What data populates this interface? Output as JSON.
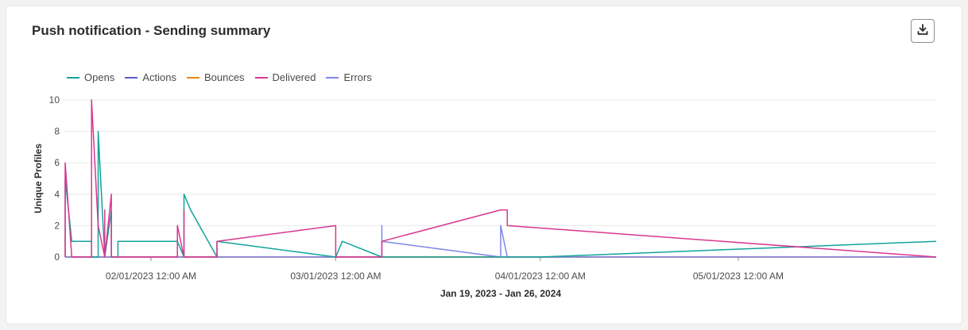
{
  "header": {
    "title": "Push notification - Sending summary",
    "download_icon": "download-icon"
  },
  "chart_data": {
    "type": "line",
    "title": "Push notification - Sending summary",
    "ylabel": "Unique Profiles",
    "xlabel": "Jan 19, 2023 - Jan 26, 2024",
    "ylim": [
      0,
      10
    ],
    "yticks": [
      0,
      2,
      4,
      6,
      8,
      10
    ],
    "x_tick_labels": [
      "02/01/2023 12:00 AM",
      "03/01/2023 12:00 AM",
      "04/01/2023 12:00 AM",
      "05/01/2023 12:00 AM"
    ],
    "x_range": [
      "2023-01-19",
      "2023-05-31"
    ],
    "grid": true,
    "legend_position": "top-left",
    "series": [
      {
        "name": "Opens",
        "color": "#12a39a",
        "points": [
          [
            "2023-01-19",
            0
          ],
          [
            "2023-01-19",
            5
          ],
          [
            "2023-01-20",
            1
          ],
          [
            "2023-01-23",
            1
          ],
          [
            "2023-01-23",
            0
          ],
          [
            "2023-01-24",
            0
          ],
          [
            "2023-01-24",
            8
          ],
          [
            "2023-01-25",
            0
          ],
          [
            "2023-01-25",
            0
          ],
          [
            "2023-01-26",
            3
          ],
          [
            "2023-01-26",
            0
          ],
          [
            "2023-01-27",
            0
          ],
          [
            "2023-01-27",
            1
          ],
          [
            "2023-02-05",
            1
          ],
          [
            "2023-02-06",
            0
          ],
          [
            "2023-02-06",
            4
          ],
          [
            "2023-02-07",
            3
          ],
          [
            "2023-02-11",
            0
          ],
          [
            "2023-02-11",
            1
          ],
          [
            "2023-03-01",
            0
          ],
          [
            "2023-03-01",
            0
          ],
          [
            "2023-03-02",
            1
          ],
          [
            "2023-03-08",
            0
          ],
          [
            "2023-04-01",
            0
          ],
          [
            "2023-05-31",
            1
          ]
        ]
      },
      {
        "name": "Actions",
        "color": "#5c5cc8",
        "points": [
          [
            "2023-01-19",
            0
          ],
          [
            "2023-05-31",
            0
          ]
        ]
      },
      {
        "name": "Bounces",
        "color": "#e68619",
        "points": [
          [
            "2023-01-19",
            0
          ],
          [
            "2023-05-31",
            0
          ]
        ]
      },
      {
        "name": "Delivered",
        "color": "#d83790",
        "points": [
          [
            "2023-01-19",
            0
          ],
          [
            "2023-01-19",
            6
          ],
          [
            "2023-01-20",
            0
          ],
          [
            "2023-01-23",
            0
          ],
          [
            "2023-01-23",
            1
          ],
          [
            "2023-01-23",
            0
          ],
          [
            "2023-01-23",
            10
          ],
          [
            "2023-01-24",
            2
          ],
          [
            "2023-01-25",
            0
          ],
          [
            "2023-01-25",
            3
          ],
          [
            "2023-01-25",
            0
          ],
          [
            "2023-01-26",
            4
          ],
          [
            "2023-01-26",
            0
          ],
          [
            "2023-02-05",
            0
          ],
          [
            "2023-02-05",
            2
          ],
          [
            "2023-02-06",
            0
          ],
          [
            "2023-02-06",
            0
          ],
          [
            "2023-02-06",
            3
          ],
          [
            "2023-02-06",
            0
          ],
          [
            "2023-02-11",
            0
          ],
          [
            "2023-02-11",
            1
          ],
          [
            "2023-03-01",
            2
          ],
          [
            "2023-03-01",
            0
          ],
          [
            "2023-03-02",
            0
          ],
          [
            "2023-03-08",
            0
          ],
          [
            "2023-03-08",
            1
          ],
          [
            "2023-03-26",
            3
          ],
          [
            "2023-03-27",
            3
          ],
          [
            "2023-03-27",
            2
          ],
          [
            "2023-05-31",
            0
          ]
        ]
      },
      {
        "name": "Errors",
        "color": "#7e86e6",
        "points": [
          [
            "2023-01-19",
            0
          ],
          [
            "2023-03-08",
            0
          ],
          [
            "2023-03-08",
            2
          ],
          [
            "2023-03-08",
            0
          ],
          [
            "2023-03-08",
            1
          ],
          [
            "2023-03-26",
            0
          ],
          [
            "2023-03-26",
            2
          ],
          [
            "2023-03-27",
            0
          ],
          [
            "2023-05-31",
            0
          ]
        ]
      }
    ]
  }
}
